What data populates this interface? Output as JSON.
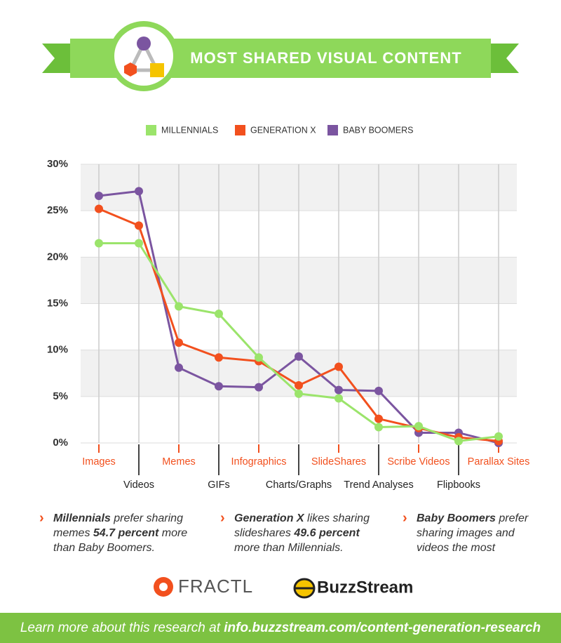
{
  "chart_data": {
    "type": "line",
    "title": "MOST SHARED VISUAL CONTENT",
    "categories": [
      "Images",
      "Videos",
      "Memes",
      "GIFs",
      "Infographics",
      "Charts/Graphs",
      "SlideShares",
      "Trend Analyses",
      "Scribe Videos",
      "Flipbooks",
      "Parallax Sites"
    ],
    "series": [
      {
        "name": "MILLENNIALS",
        "color": "#9be46b",
        "values": [
          21.5,
          21.5,
          14.7,
          13.9,
          9.2,
          5.3,
          4.8,
          1.7,
          1.8,
          0.2,
          0.7
        ]
      },
      {
        "name": "GENERATION X",
        "color": "#f2501e",
        "values": [
          25.2,
          23.4,
          10.8,
          9.2,
          8.8,
          6.2,
          8.2,
          2.6,
          1.6,
          0.6,
          0.2
        ]
      },
      {
        "name": "BABY BOOMERS",
        "color": "#7b55a0",
        "values": [
          26.6,
          27.1,
          8.1,
          6.1,
          6.0,
          9.3,
          5.7,
          5.6,
          1.1,
          1.1,
          0
        ]
      }
    ],
    "ylim": [
      0,
      30
    ],
    "yticks": [
      {
        "value": 0,
        "label": "0%"
      },
      {
        "value": 5,
        "label": "5%"
      },
      {
        "value": 10,
        "label": "10%"
      },
      {
        "value": 15,
        "label": "15%"
      },
      {
        "value": 20,
        "label": "20%"
      },
      {
        "value": 25,
        "label": "25%"
      },
      {
        "value": 30,
        "label": "30%"
      }
    ],
    "grid": true,
    "legend": "top"
  },
  "notes": [
    {
      "lead": "Millennials",
      "text1": "prefer sharing memes",
      "figure": "54.7 percent",
      "text2": "more than Baby Boomers."
    },
    {
      "lead": "Generation X",
      "text1": "likes sharing slideshares",
      "figure": "49.6 percent",
      "text2": "more than Millennials."
    },
    {
      "lead": "Baby Boomers",
      "text1": "prefer sharing images and videos the most"
    }
  ],
  "logos": [
    "FRACTL",
    "BuzzStream"
  ],
  "footer": {
    "text": "Learn more about this research at",
    "link": "info.buzzstream.com/content-generation-research"
  }
}
